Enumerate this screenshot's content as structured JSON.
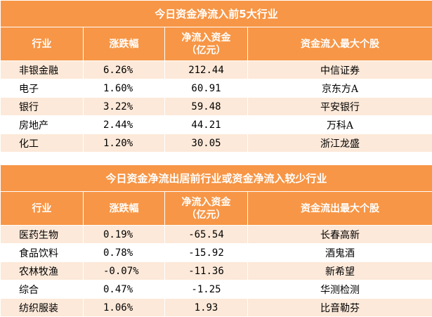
{
  "table_in": {
    "title": "今日资金净流入前5大行业",
    "headers": [
      "行业",
      "涨跌幅",
      "净流入资金\n（亿元）",
      "资金流入最大个股"
    ],
    "rows": [
      [
        "非银金融",
        "6.26%",
        "212.44",
        "中信证券"
      ],
      [
        "电子",
        "1.60%",
        "60.91",
        "京东方A"
      ],
      [
        "银行",
        "3.22%",
        "59.48",
        "平安银行"
      ],
      [
        "房地产",
        "2.44%",
        "44.21",
        "万科A"
      ],
      [
        "化工",
        "1.20%",
        "30.05",
        "浙江龙盛"
      ]
    ]
  },
  "table_out": {
    "title": "今日资金净流出居前行业或资金净流入较少行业",
    "headers": [
      "行业",
      "涨跌幅",
      "净流入资金\n（亿元）",
      "资金流出最大个股"
    ],
    "rows": [
      [
        "医药生物",
        "0.19%",
        "-65.54",
        "长春高新"
      ],
      [
        "食品饮料",
        "0.78%",
        "-15.92",
        "酒鬼酒"
      ],
      [
        "农林牧渔",
        "-0.07%",
        "-11.36",
        "新希望"
      ],
      [
        "综合",
        "0.47%",
        "-1.25",
        "华测检测"
      ],
      [
        "纺织服装",
        "1.06%",
        "1.93",
        "比音勒芬"
      ]
    ]
  },
  "colors": {
    "header_bg": "#f79646",
    "header_text": "#ffffff",
    "stripe": "#fde9d9"
  }
}
